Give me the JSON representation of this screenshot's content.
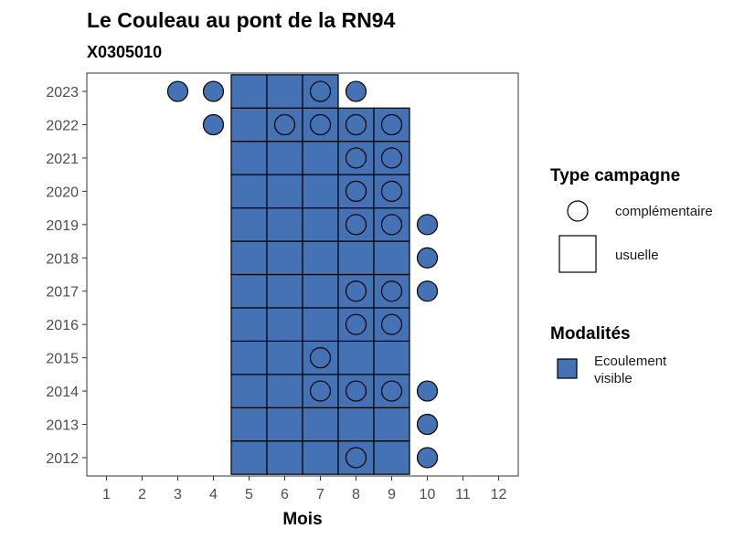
{
  "chart_data": {
    "type": "heatmap",
    "title": "Le Couleau au pont de la RN94",
    "subtitle": "X0305010",
    "xlabel": "Mois",
    "ylabel": "",
    "x_ticks": [
      1,
      2,
      3,
      4,
      5,
      6,
      7,
      8,
      9,
      10,
      11,
      12
    ],
    "y_ticks": [
      2012,
      2013,
      2014,
      2015,
      2016,
      2017,
      2018,
      2019,
      2020,
      2021,
      2022,
      2023
    ],
    "grid": false,
    "fill_color": "#4472b4",
    "usuelle": [
      {
        "year": 2012,
        "months": [
          5,
          6,
          7,
          8,
          9
        ]
      },
      {
        "year": 2013,
        "months": [
          5,
          6,
          7,
          8,
          9
        ]
      },
      {
        "year": 2014,
        "months": [
          5,
          6,
          7,
          8,
          9
        ]
      },
      {
        "year": 2015,
        "months": [
          5,
          6,
          7,
          8,
          9
        ]
      },
      {
        "year": 2016,
        "months": [
          5,
          6,
          7,
          8,
          9
        ]
      },
      {
        "year": 2017,
        "months": [
          5,
          6,
          7,
          8,
          9
        ]
      },
      {
        "year": 2018,
        "months": [
          5,
          6,
          7,
          8,
          9
        ]
      },
      {
        "year": 2019,
        "months": [
          5,
          6,
          7,
          8,
          9
        ]
      },
      {
        "year": 2020,
        "months": [
          5,
          6,
          7,
          8,
          9
        ]
      },
      {
        "year": 2021,
        "months": [
          5,
          6,
          7,
          8,
          9
        ]
      },
      {
        "year": 2022,
        "months": [
          5,
          6,
          7,
          8,
          9
        ]
      },
      {
        "year": 2023,
        "months": [
          5,
          6,
          7
        ]
      }
    ],
    "complementaire": [
      {
        "year": 2012,
        "months": [
          8,
          10
        ]
      },
      {
        "year": 2013,
        "months": [
          10
        ]
      },
      {
        "year": 2014,
        "months": [
          7,
          8,
          9,
          10
        ]
      },
      {
        "year": 2015,
        "months": [
          7
        ]
      },
      {
        "year": 2016,
        "months": [
          8,
          9
        ]
      },
      {
        "year": 2017,
        "months": [
          8,
          9,
          10
        ]
      },
      {
        "year": 2018,
        "months": [
          10
        ]
      },
      {
        "year": 2019,
        "months": [
          8,
          9,
          10
        ]
      },
      {
        "year": 2020,
        "months": [
          8,
          9
        ]
      },
      {
        "year": 2021,
        "months": [
          8,
          9
        ]
      },
      {
        "year": 2022,
        "months": [
          4,
          6,
          7,
          8,
          9
        ]
      },
      {
        "year": 2023,
        "months": [
          3,
          4,
          7,
          8
        ]
      }
    ],
    "legend": {
      "placement": "right",
      "type_title": "Type campagne",
      "type_items": [
        "complémentaire",
        "usuelle"
      ],
      "modalites_title": "Modalités",
      "modalites_items": [
        "Ecoulement\nvisible"
      ]
    }
  }
}
